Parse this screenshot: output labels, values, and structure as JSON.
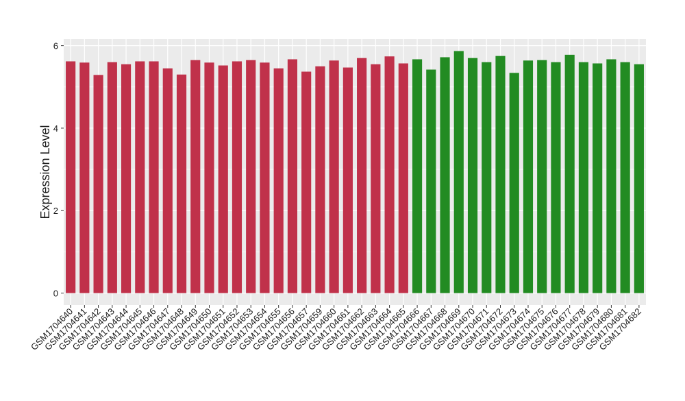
{
  "chart_data": {
    "type": "bar",
    "y_label": "Expression Level",
    "categories": [
      "GSM1704640",
      "GSM1704641",
      "GSM1704642",
      "GSM1704643",
      "GSM1704644",
      "GSM1704645",
      "GSM1704646",
      "GSM1704647",
      "GSM1704648",
      "GSM1704649",
      "GSM1704650",
      "GSM1704651",
      "GSM1704652",
      "GSM1704653",
      "GSM1704654",
      "GSM1704655",
      "GSM1704656",
      "GSM1704657",
      "GSM1704659",
      "GSM1704660",
      "GSM1704661",
      "GSM1704662",
      "GSM1704663",
      "GSM1704664",
      "GSM1704665",
      "GSM1704666",
      "GSM1704667",
      "GSM1704668",
      "GSM1704669",
      "GSM1704670",
      "GSM1704671",
      "GSM1704672",
      "GSM1704673",
      "GSM1704674",
      "GSM1704675",
      "GSM1704676",
      "GSM1704677",
      "GSM1704678",
      "GSM1704679",
      "GSM1704680",
      "GSM1704681",
      "GSM1704682"
    ],
    "values": [
      5.62,
      5.59,
      5.29,
      5.6,
      5.55,
      5.62,
      5.62,
      5.45,
      5.3,
      5.65,
      5.59,
      5.52,
      5.62,
      5.65,
      5.59,
      5.45,
      5.67,
      5.37,
      5.5,
      5.64,
      5.47,
      5.7,
      5.55,
      5.74,
      5.57,
      5.67,
      5.42,
      5.72,
      5.87,
      5.7,
      5.6,
      5.75,
      5.34,
      5.64,
      5.65,
      5.6,
      5.78,
      5.6,
      5.57,
      5.67,
      5.6,
      5.55
    ],
    "colors": [
      "#c0314a",
      "#c0314a",
      "#c0314a",
      "#c0314a",
      "#c0314a",
      "#c0314a",
      "#c0314a",
      "#c0314a",
      "#c0314a",
      "#c0314a",
      "#c0314a",
      "#c0314a",
      "#c0314a",
      "#c0314a",
      "#c0314a",
      "#c0314a",
      "#c0314a",
      "#c0314a",
      "#c0314a",
      "#c0314a",
      "#c0314a",
      "#c0314a",
      "#c0314a",
      "#c0314a",
      "#c0314a",
      "#228b22",
      "#228b22",
      "#228b22",
      "#228b22",
      "#228b22",
      "#228b22",
      "#228b22",
      "#228b22",
      "#228b22",
      "#228b22",
      "#228b22",
      "#228b22",
      "#228b22",
      "#228b22",
      "#228b22",
      "#228b22",
      "#228b22"
    ],
    "ylim": [
      -0.29,
      6.16
    ],
    "yticks": [
      0,
      2,
      4,
      6
    ],
    "grid": true
  }
}
